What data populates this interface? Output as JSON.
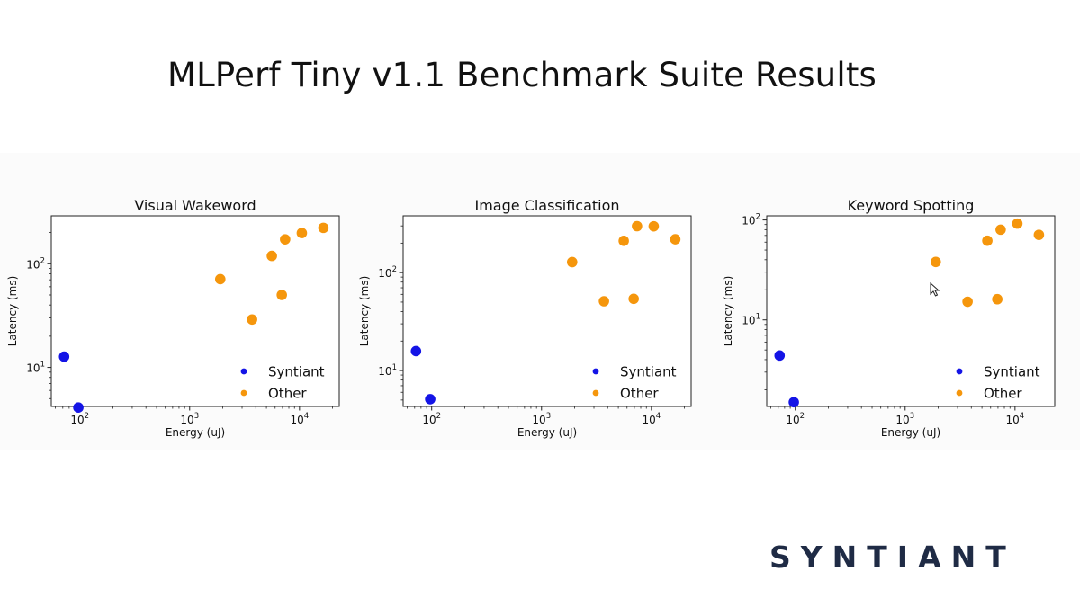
{
  "page": {
    "title": "MLPerf Tiny v1.1 Benchmark Suite Results",
    "brand": "SYNTIANT"
  },
  "colors": {
    "syntiant": "#1414e6",
    "other": "#f5960c",
    "axis": "#222222",
    "brand": "#1f2b45"
  },
  "chart_data": [
    {
      "type": "scatter",
      "title": "Visual Wakeword",
      "xlabel": "Energy (uJ)",
      "ylabel": "Latency (ms)",
      "xscale": "log",
      "yscale": "log",
      "xlim": [
        55,
        23000
      ],
      "ylim": [
        4.2,
        290
      ],
      "xticks": [
        {
          "base": "10",
          "exp": "2",
          "value": 100
        },
        {
          "base": "10",
          "exp": "3",
          "value": 1000
        },
        {
          "base": "10",
          "exp": "4",
          "value": 10000
        }
      ],
      "yticks": [
        {
          "base": "10",
          "exp": "1",
          "value": 10
        },
        {
          "base": "10",
          "exp": "2",
          "value": 100
        }
      ],
      "legend_position": "bottom-right",
      "series": [
        {
          "name": "Syntiant",
          "color_key": "syntiant",
          "points": [
            [
              72,
              12.7
            ],
            [
              97,
              4.1
            ]
          ]
        },
        {
          "name": "Other",
          "color_key": "other",
          "points": [
            [
              1900,
              71
            ],
            [
              3700,
              29
            ],
            [
              5600,
              119
            ],
            [
              6900,
              50
            ],
            [
              7400,
              172
            ],
            [
              10500,
              198
            ],
            [
              16500,
              222
            ]
          ]
        }
      ]
    },
    {
      "type": "scatter",
      "title": "Image Classification",
      "xlabel": "Energy (uJ)",
      "ylabel": "Latency (ms)",
      "xscale": "log",
      "yscale": "log",
      "xlim": [
        55,
        23000
      ],
      "ylim": [
        4.3,
        380
      ],
      "xticks": [
        {
          "base": "10",
          "exp": "2",
          "value": 100
        },
        {
          "base": "10",
          "exp": "3",
          "value": 1000
        },
        {
          "base": "10",
          "exp": "4",
          "value": 10000
        }
      ],
      "yticks": [
        {
          "base": "10",
          "exp": "1",
          "value": 10
        },
        {
          "base": "10",
          "exp": "2",
          "value": 100
        }
      ],
      "legend_position": "bottom-right",
      "series": [
        {
          "name": "Syntiant",
          "color_key": "syntiant",
          "points": [
            [
              72,
              15.8
            ],
            [
              97,
              5.1
            ]
          ]
        },
        {
          "name": "Other",
          "color_key": "other",
          "points": [
            [
              1900,
              128
            ],
            [
              3700,
              51
            ],
            [
              5600,
              211
            ],
            [
              6900,
              54
            ],
            [
              7400,
              298
            ],
            [
              10500,
              297
            ],
            [
              16500,
              219
            ]
          ]
        }
      ]
    },
    {
      "type": "scatter",
      "title": "Keyword Spotting",
      "xlabel": "Energy (uJ)",
      "ylabel": "Latency (ms)",
      "xscale": "log",
      "yscale": "log",
      "xlim": [
        55,
        23000
      ],
      "ylim": [
        1.36,
        110
      ],
      "xticks": [
        {
          "base": "10",
          "exp": "2",
          "value": 100
        },
        {
          "base": "10",
          "exp": "3",
          "value": 1000
        },
        {
          "base": "10",
          "exp": "4",
          "value": 10000
        }
      ],
      "yticks": [
        {
          "base": "10",
          "exp": "1",
          "value": 10
        },
        {
          "base": "10",
          "exp": "2",
          "value": 100
        }
      ],
      "legend_position": "bottom-right",
      "series": [
        {
          "name": "Syntiant",
          "color_key": "syntiant",
          "points": [
            [
              72,
              4.4
            ],
            [
              97,
              1.5
            ]
          ]
        },
        {
          "name": "Other",
          "color_key": "other",
          "points": [
            [
              1900,
              38
            ],
            [
              3700,
              15.2
            ],
            [
              5600,
              62
            ],
            [
              6900,
              16.1
            ],
            [
              7400,
              80
            ],
            [
              10500,
              92
            ],
            [
              16500,
              71
            ]
          ]
        }
      ]
    }
  ]
}
